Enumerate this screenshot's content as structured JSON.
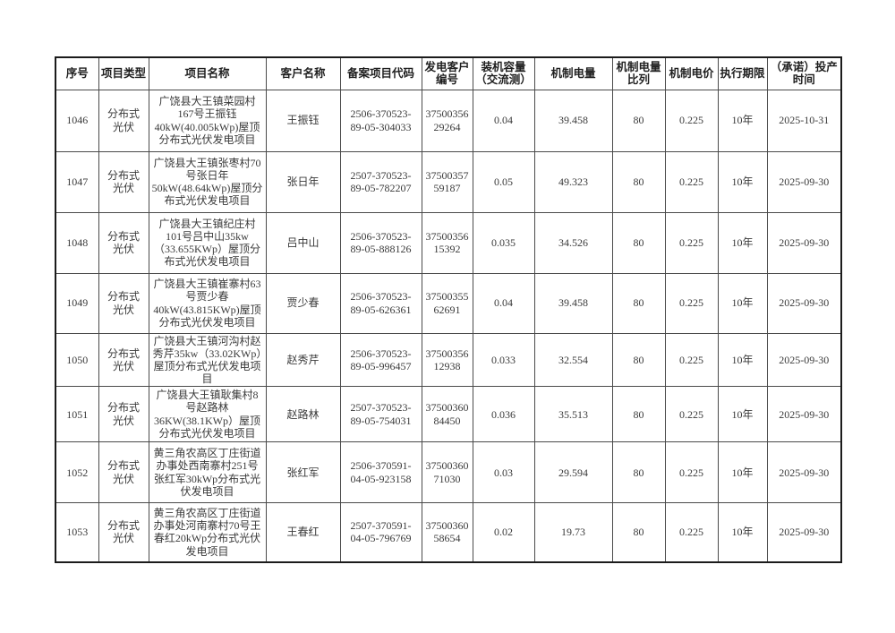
{
  "page": {
    "background": "#ffffff",
    "border_color": "#1b1b1b",
    "text_color": "#3a3a3a"
  },
  "table": {
    "columns": [
      {
        "key": "seq",
        "label": "序号"
      },
      {
        "key": "type",
        "label": "项目类型"
      },
      {
        "key": "name",
        "label": "项目名称"
      },
      {
        "key": "customer",
        "label": "客户名称"
      },
      {
        "key": "code",
        "label": "备案项目代码"
      },
      {
        "key": "gen_no",
        "label": "发电客户\n编号"
      },
      {
        "key": "capacity",
        "label": "装机容量\n（交流测）"
      },
      {
        "key": "mech_qty",
        "label": "机制电量"
      },
      {
        "key": "mech_ratio",
        "label": "机制电量\n比列"
      },
      {
        "key": "mech_price",
        "label": "机制电价"
      },
      {
        "key": "term",
        "label": "执行期限"
      },
      {
        "key": "prod_date",
        "label": "（承诺）投产\n时间"
      }
    ],
    "rows": [
      {
        "seq": "1046",
        "type": "分布式光伏",
        "name": "广饶县大王镇菜园村167号王振钰40kW(40.005kWp)屋顶分布式光伏发电项目",
        "customer": "王振钰",
        "code": "2506-370523-\n89-05-304033",
        "gen_no": "37500356\n29264",
        "capacity": "0.04",
        "mech_qty": "39.458",
        "mech_ratio": "80",
        "mech_price": "0.225",
        "term": "10年",
        "prod_date": "2025-10-31"
      },
      {
        "seq": "1047",
        "type": "分布式光伏",
        "name": "广饶县大王镇张枣村70号张日年50kW(48.64kWp)屋顶分布式光伏发电项目",
        "customer": "张日年",
        "code": "2507-370523-\n89-05-782207",
        "gen_no": "37500357\n59187",
        "capacity": "0.05",
        "mech_qty": "49.323",
        "mech_ratio": "80",
        "mech_price": "0.225",
        "term": "10年",
        "prod_date": "2025-09-30"
      },
      {
        "seq": "1048",
        "type": "分布式光伏",
        "name": "广饶县大王镇纪庄村101号吕中山35kw（33.655KWp）屋顶分布式光伏发电项目",
        "customer": "吕中山",
        "code": "2506-370523-\n89-05-888126",
        "gen_no": "37500356\n15392",
        "capacity": "0.035",
        "mech_qty": "34.526",
        "mech_ratio": "80",
        "mech_price": "0.225",
        "term": "10年",
        "prod_date": "2025-09-30"
      },
      {
        "seq": "1049",
        "type": "分布式光伏",
        "name": "广饶县大王镇崔寨村63号贾少春40kW(43.815KWp)屋顶分布式光伏发电项目",
        "customer": "贾少春",
        "code": "2506-370523-\n89-05-626361",
        "gen_no": "37500355\n62691",
        "capacity": "0.04",
        "mech_qty": "39.458",
        "mech_ratio": "80",
        "mech_price": "0.225",
        "term": "10年",
        "prod_date": "2025-09-30"
      },
      {
        "seq": "1050",
        "type": "分布式光伏",
        "name": "广饶县大王镇河沟村赵秀芹35kw（33.02KWp）屋顶分布式光伏发电项目",
        "customer": "赵秀芹",
        "code": "2506-370523-\n89-05-996457",
        "gen_no": "37500356\n12938",
        "capacity": "0.033",
        "mech_qty": "32.554",
        "mech_ratio": "80",
        "mech_price": "0.225",
        "term": "10年",
        "prod_date": "2025-09-30"
      },
      {
        "seq": "1051",
        "type": "分布式光伏",
        "name": "广饶县大王镇耿集村8号赵路林36KW(38.1KWp）屋顶分布式光伏发电项目",
        "customer": "赵路林",
        "code": "2507-370523-\n89-05-754031",
        "gen_no": "37500360\n84450",
        "capacity": "0.036",
        "mech_qty": "35.513",
        "mech_ratio": "80",
        "mech_price": "0.225",
        "term": "10年",
        "prod_date": "2025-09-30"
      },
      {
        "seq": "1052",
        "type": "分布式光伏",
        "name": "黄三角农高区丁庄街道办事处西南寨村251号张红军30kWp分布式光伏发电项目",
        "customer": "张红军",
        "code": "2506-370591-\n04-05-923158",
        "gen_no": "37500360\n71030",
        "capacity": "0.03",
        "mech_qty": "29.594",
        "mech_ratio": "80",
        "mech_price": "0.225",
        "term": "10年",
        "prod_date": "2025-09-30"
      },
      {
        "seq": "1053",
        "type": "分布式光伏",
        "name": "黄三角农高区丁庄街道办事处河南寨村70号王春红20kWp分布式光伏发电项目",
        "customer": "王春红",
        "code": "2507-370591-\n04-05-796769",
        "gen_no": "37500360\n58654",
        "capacity": "0.02",
        "mech_qty": "19.73",
        "mech_ratio": "80",
        "mech_price": "0.225",
        "term": "10年",
        "prod_date": "2025-09-30"
      }
    ]
  }
}
